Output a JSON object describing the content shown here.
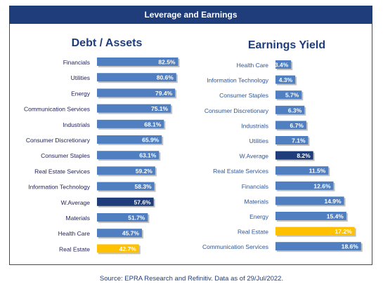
{
  "title": "Leverage and Earnings",
  "source": "Source: EPRA Research and Refinitiv. Data as of 29/Jul/2022.",
  "colors": {
    "bar": "#4f7fc1",
    "highlight_waverage": "#1f3d7a",
    "highlight_real_estate": "#ffc000",
    "label_blue": "#2f5597",
    "title_bg": "#1f3d7a"
  },
  "chart_data": [
    {
      "type": "bar",
      "orientation": "horizontal",
      "title": "Debt / Assets",
      "categories": [
        "Financials",
        "Utilities",
        "Energy",
        "Communication Services",
        "Industrials",
        "Consumer Discretionary",
        "Consumer Staples",
        "Real Estate Services",
        "Information Technology",
        "W.Average",
        "Materials",
        "Health Care",
        "Real Estate"
      ],
      "values": [
        82.5,
        80.6,
        79.4,
        75.1,
        68.1,
        65.9,
        63.1,
        59.2,
        58.3,
        57.6,
        51.7,
        45.7,
        42.7
      ],
      "labels": [
        "82.5%",
        "80.6%",
        "79.4%",
        "75.1%",
        "68.1%",
        "65.9%",
        "63.1%",
        "59.2%",
        "58.3%",
        "57.6%",
        "51.7%",
        "45.7%",
        "42.7%"
      ],
      "highlights": {
        "W.Average": "highlight_waverage",
        "Real Estate": "highlight_real_estate"
      },
      "xlim": [
        0,
        100
      ]
    },
    {
      "type": "bar",
      "orientation": "horizontal",
      "title": "Earnings Yield",
      "categories": [
        "Health Care",
        "Information Technology",
        "Consumer Staples",
        "Consumer Discretionary",
        "Industrials",
        "Utilities",
        "W.Average",
        "Real Estate Services",
        "Financials",
        "Materials",
        "Energy",
        "Real Estate",
        "Communication Services"
      ],
      "values": [
        3.4,
        4.3,
        5.7,
        6.3,
        6.7,
        7.1,
        8.2,
        11.5,
        12.6,
        14.9,
        15.4,
        17.2,
        18.6
      ],
      "labels": [
        "3.4%",
        "4.3%",
        "5.7%",
        "6.3%",
        "6.7%",
        "7.1%",
        "8.2%",
        "11.5%",
        "12.6%",
        "14.9%",
        "15.4%",
        "17.2%",
        "18.6%"
      ],
      "highlights": {
        "W.Average": "highlight_waverage",
        "Real Estate": "highlight_real_estate"
      },
      "xlim": [
        0,
        20
      ]
    }
  ]
}
